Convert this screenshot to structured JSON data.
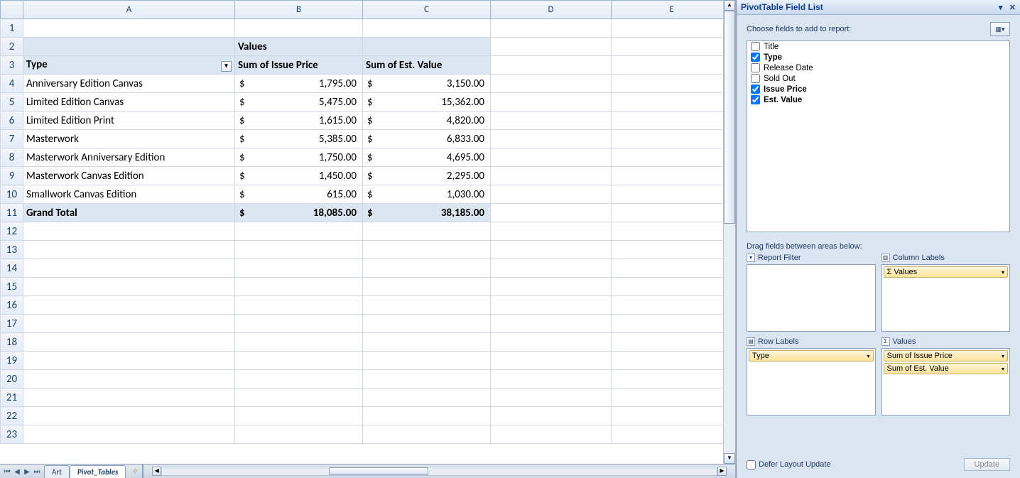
{
  "columns": [
    "A",
    "B",
    "C",
    "D",
    "E"
  ],
  "row_count": 23,
  "pivot": {
    "values_header": "Values",
    "type_header": "Type",
    "headers": [
      "Sum of Issue Price",
      "Sum of Est. Value"
    ],
    "rows": [
      {
        "type": "Anniversary Edition Canvas",
        "issue": "1,795.00",
        "est": "3,150.00"
      },
      {
        "type": "Limited Edition Canvas",
        "issue": "5,475.00",
        "est": "15,362.00"
      },
      {
        "type": "Limited Edition Print",
        "issue": "1,615.00",
        "est": "4,820.00"
      },
      {
        "type": "Masterwork",
        "issue": "5,385.00",
        "est": "6,833.00"
      },
      {
        "type": "Masterwork Anniversary Edition",
        "issue": "1,750.00",
        "est": "4,695.00"
      },
      {
        "type": "Masterwork Canvas Edition",
        "issue": "1,450.00",
        "est": "2,295.00"
      },
      {
        "type": "Smallwork Canvas Edition",
        "issue": "615.00",
        "est": "1,030.00"
      }
    ],
    "grand_total_label": "Grand Total",
    "grand_total": {
      "issue": "18,085.00",
      "est": "38,185.00"
    }
  },
  "tabs": {
    "list": [
      "Art",
      "Pivot_Tables"
    ],
    "active": "Pivot_Tables"
  },
  "panel": {
    "title": "PivotTable Field List",
    "choose_label": "Choose fields to add to report:",
    "fields": [
      {
        "name": "Title",
        "checked": false
      },
      {
        "name": "Type",
        "checked": true
      },
      {
        "name": "Release Date",
        "checked": false
      },
      {
        "name": "Sold Out",
        "checked": false
      },
      {
        "name": "Issue Price",
        "checked": true
      },
      {
        "name": "Est. Value",
        "checked": true
      }
    ],
    "drag_label": "Drag fields between areas below:",
    "areas": {
      "report_filter": {
        "title": "Report Filter",
        "items": []
      },
      "column_labels": {
        "title": "Column Labels",
        "items": [
          "Σ  Values"
        ]
      },
      "row_labels": {
        "title": "Row Labels",
        "items": [
          "Type"
        ]
      },
      "values": {
        "title": "Values",
        "items": [
          "Sum of Issue Price",
          "Sum of Est. Value"
        ]
      }
    },
    "defer_label": "Defer Layout Update",
    "update_label": "Update"
  },
  "currency_symbol": "$"
}
